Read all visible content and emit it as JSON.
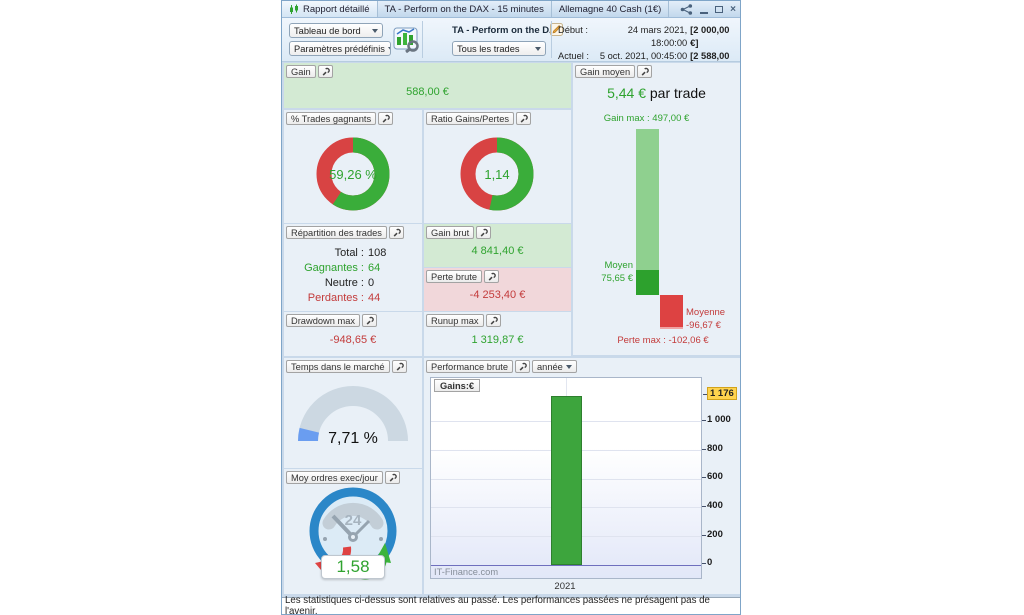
{
  "window": {
    "tabs": [
      {
        "label": "Rapport détaillé"
      },
      {
        "label": "TA - Perform on the DAX - 15 minutes"
      },
      {
        "label": "Allemagne 40 Cash (1€)"
      }
    ]
  },
  "toolbar": {
    "dashboard_select": "Tableau de bord",
    "presets_select": "Paramètres prédéfinis",
    "strategy_title": "TA - Perform on the DAX",
    "trades_filter": "Tous les trades",
    "start_label": "Début :",
    "start_datetime": "24 mars 2021, 18:00:00",
    "start_amount": "[2 000,00 €]",
    "current_label": "Actuel :",
    "current_datetime": "5 oct. 2021, 00:45:00",
    "current_amount": "[2 588,00 €]"
  },
  "panels": {
    "gain": {
      "label": "Gain",
      "value": "588,00 €"
    },
    "gain_moyen": {
      "label": "Gain moyen",
      "value": "5,44 €",
      "suffix": " par trade",
      "gain_max": "Gain max : 497,00 €",
      "moyen_label": "Moyen",
      "moyen_value": "75,65 €",
      "moyenne_label": "Moyenne",
      "moyenne_value": "-96,67 €",
      "perte_max": "Perte max : -102,06 €"
    },
    "winning_trades": {
      "label": "% Trades gagnants",
      "value": "59,26 %"
    },
    "ratio": {
      "label": "Ratio Gains/Pertes",
      "value": "1,14"
    },
    "repartition": {
      "label": "Répartition des trades",
      "rows": [
        {
          "label": "Total :",
          "value": "108",
          "color": "dark"
        },
        {
          "label": "Gagnantes :",
          "value": "64",
          "color": "green"
        },
        {
          "label": "Neutre :",
          "value": "0",
          "color": "dark"
        },
        {
          "label": "Perdantes :",
          "value": "44",
          "color": "red"
        }
      ]
    },
    "gain_brut": {
      "label": "Gain brut",
      "value": "4 841,40 €"
    },
    "perte_brute": {
      "label": "Perte brute",
      "value": "-4 253,40 €"
    },
    "drawdown": {
      "label": "Drawdown max",
      "value": "-948,65 €"
    },
    "runup": {
      "label": "Runup max",
      "value": "1 319,87 €"
    },
    "temps_marche": {
      "label": "Temps dans le marché",
      "value": "7,71 %"
    },
    "moy_ordres": {
      "label": "Moy ordres exec/jour",
      "value": "1,58",
      "dial_text": "24"
    },
    "performance": {
      "label": "Performance brute",
      "period": "année",
      "series_label": "Gains:€",
      "watermark": "IT-Finance.com",
      "x_label": "2021",
      "current_value": "1 176",
      "yticks": [
        "1 000",
        "800",
        "600",
        "400",
        "200",
        "0"
      ]
    }
  },
  "status_bar": "Les statistiques ci-dessus sont relatives au passé. Les performances passées ne présagent pas de l'avenir.",
  "colors": {
    "gain_green": "#2fa32f",
    "loss_red": "#c33b3b",
    "bar_green": "#3da53d",
    "gauge_blue": "#6a9df0",
    "highlight_yellow": "#ffd34d"
  },
  "chart_data": [
    {
      "id": "performance_brute",
      "type": "bar",
      "title": "Performance brute",
      "period": "année",
      "ylabel": "Gains:€",
      "categories": [
        "2021"
      ],
      "values": [
        1176
      ],
      "ylim": [
        0,
        1200
      ],
      "yticks": [
        0,
        200,
        400,
        600,
        800,
        1000
      ],
      "current_value": 1176,
      "legend_position": "none",
      "grid": true
    },
    {
      "id": "average_gain",
      "type": "bar",
      "title": "Gain moyen (€ par trade)",
      "avg_per_trade": 5.44,
      "gain_max": 497.0,
      "gain_moyen": 75.65,
      "perte_moyenne": -96.67,
      "perte_max": -102.06
    },
    {
      "id": "winning_trades_pct",
      "type": "pie",
      "title": "% Trades gagnants",
      "labels": [
        "Gagnants",
        "Perdants"
      ],
      "values": [
        59.26,
        40.74
      ]
    },
    {
      "id": "gain_loss_ratio",
      "type": "pie",
      "title": "Ratio Gains/Pertes",
      "ratio": 1.14
    },
    {
      "id": "time_in_market",
      "type": "gauge",
      "title": "Temps dans le marché",
      "value_pct": 7.71
    },
    {
      "id": "orders_per_day",
      "type": "gauge",
      "title": "Moy ordres exec/jour",
      "value": 1.58,
      "dial_max": 24
    }
  ]
}
